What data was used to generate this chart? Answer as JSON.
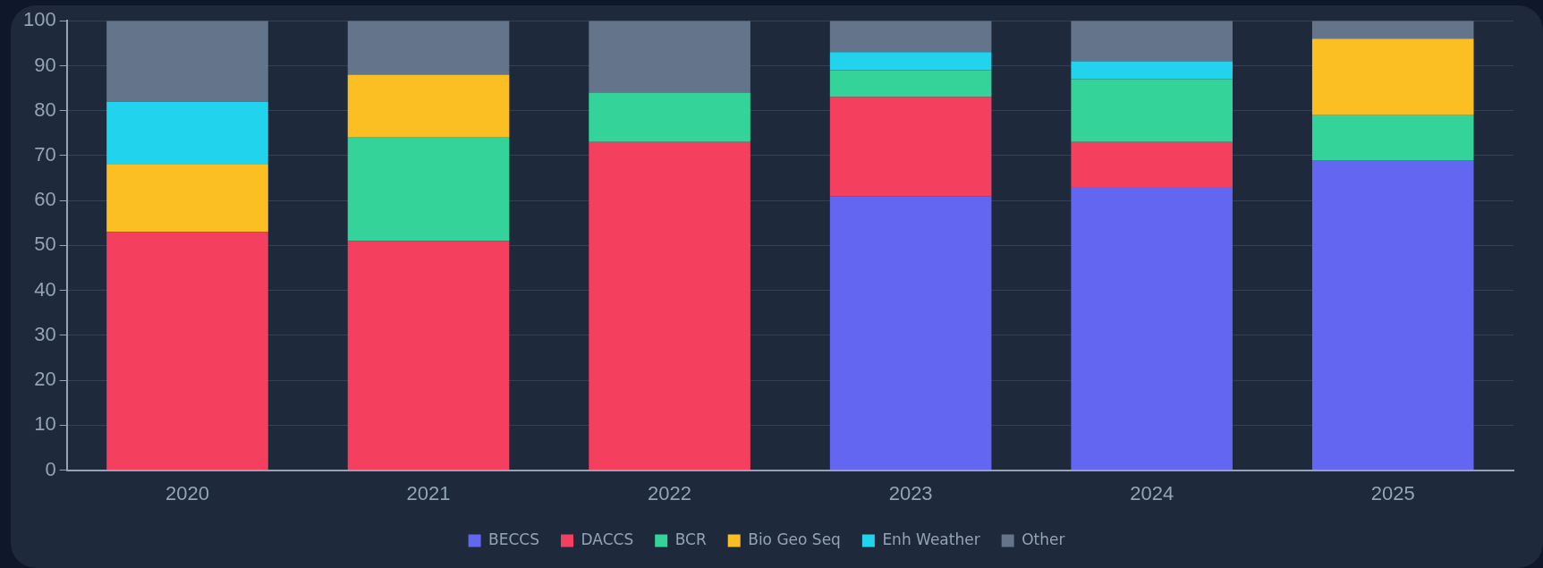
{
  "chart_data": {
    "type": "bar",
    "stacked": true,
    "categories": [
      "2020",
      "2021",
      "2022",
      "2023",
      "2024",
      "2025"
    ],
    "series": [
      {
        "name": "BECCS",
        "color": "#6366f1",
        "values": [
          0,
          0,
          0,
          61,
          63,
          69
        ]
      },
      {
        "name": "DACCS",
        "color": "#f43f5e",
        "values": [
          53,
          51,
          73,
          22,
          10,
          0
        ]
      },
      {
        "name": "BCR",
        "color": "#34d399",
        "values": [
          0,
          23,
          11,
          6,
          14,
          10
        ]
      },
      {
        "name": "Bio Geo Seq",
        "color": "#fbbf24",
        "values": [
          15,
          14,
          0,
          0,
          0,
          17
        ]
      },
      {
        "name": "Enh Weather",
        "color": "#22d3ee",
        "values": [
          14,
          0,
          0,
          4,
          4,
          0
        ]
      },
      {
        "name": "Other",
        "color": "#64748b",
        "values": [
          18,
          12,
          16,
          7,
          9,
          4
        ]
      }
    ],
    "ylim": [
      0,
      100
    ],
    "yticks": [
      0,
      10,
      20,
      30,
      40,
      50,
      60,
      70,
      80,
      90,
      100
    ],
    "grid": "y",
    "legend": "bottom"
  }
}
